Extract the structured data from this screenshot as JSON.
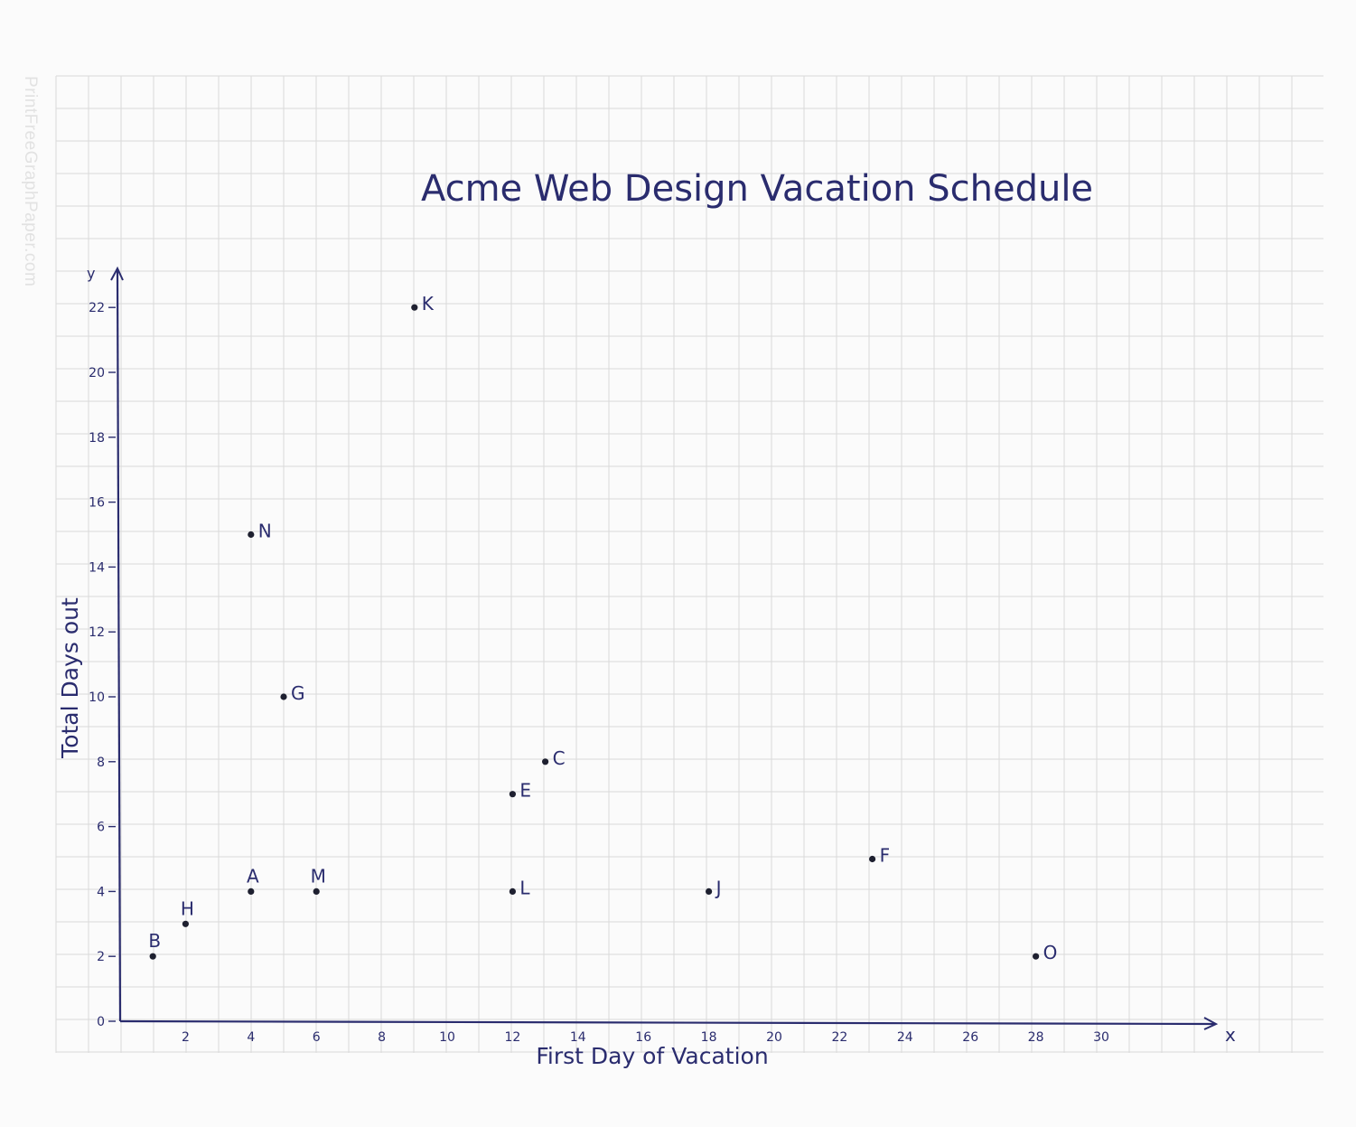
{
  "watermark": "PrintFreeGraphPaper.com",
  "chart_data": {
    "type": "scatter",
    "title": "Acme Web Design Vacation Schedule",
    "xlabel": "First Day of Vacation",
    "ylabel": "Total Days out",
    "x_axis_letter": "x",
    "y_axis_letter": "y",
    "xlim": [
      0,
      34
    ],
    "ylim": [
      0,
      23
    ],
    "xticks": [
      {
        "value": 2,
        "label": "2"
      },
      {
        "value": 4,
        "label": "4"
      },
      {
        "value": 6,
        "label": "6"
      },
      {
        "value": 8,
        "label": "8"
      },
      {
        "value": 10,
        "label": "10"
      },
      {
        "value": 12,
        "label": "12"
      },
      {
        "value": 14,
        "label": "14"
      },
      {
        "value": 16,
        "label": "16"
      },
      {
        "value": 18,
        "label": "18"
      },
      {
        "value": 20,
        "label": "20"
      },
      {
        "value": 22,
        "label": "22"
      },
      {
        "value": 24,
        "label": "24"
      },
      {
        "value": 26,
        "label": "26"
      },
      {
        "value": 28,
        "label": "28"
      },
      {
        "value": 30,
        "label": "30"
      }
    ],
    "yticks": [
      {
        "value": 0,
        "label": "0"
      },
      {
        "value": 2,
        "label": "2"
      },
      {
        "value": 4,
        "label": "4"
      },
      {
        "value": 6,
        "label": "6"
      },
      {
        "value": 8,
        "label": "8"
      },
      {
        "value": 10,
        "label": "10"
      },
      {
        "value": 12,
        "label": "12"
      },
      {
        "value": 14,
        "label": "14"
      },
      {
        "value": 16,
        "label": "16"
      },
      {
        "value": 18,
        "label": "18"
      },
      {
        "value": 20,
        "label": "20"
      },
      {
        "value": 22,
        "label": "22"
      }
    ],
    "grid": true,
    "points": [
      {
        "label": "A",
        "x": 4,
        "y": 4,
        "label_pos": "above"
      },
      {
        "label": "B",
        "x": 1,
        "y": 2,
        "label_pos": "above"
      },
      {
        "label": "C",
        "x": 13,
        "y": 8,
        "label_pos": "right"
      },
      {
        "label": "E",
        "x": 12,
        "y": 7,
        "label_pos": "right"
      },
      {
        "label": "F",
        "x": 23,
        "y": 5,
        "label_pos": "right"
      },
      {
        "label": "G",
        "x": 5,
        "y": 10,
        "label_pos": "right"
      },
      {
        "label": "H",
        "x": 2,
        "y": 3,
        "label_pos": "above"
      },
      {
        "label": "J",
        "x": 18,
        "y": 4,
        "label_pos": "right"
      },
      {
        "label": "K",
        "x": 9,
        "y": 22,
        "label_pos": "right"
      },
      {
        "label": "L",
        "x": 12,
        "y": 4,
        "label_pos": "right"
      },
      {
        "label": "M",
        "x": 6,
        "y": 4,
        "label_pos": "above"
      },
      {
        "label": "N",
        "x": 4,
        "y": 15,
        "label_pos": "right"
      },
      {
        "label": "O",
        "x": 28,
        "y": 2,
        "label_pos": "right"
      }
    ]
  }
}
